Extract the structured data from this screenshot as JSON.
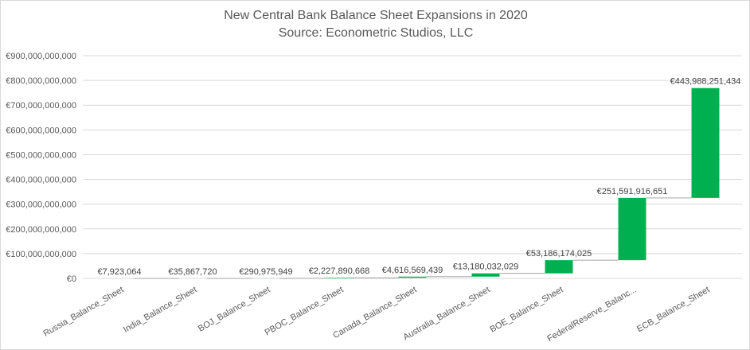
{
  "chart_data": {
    "type": "waterfall",
    "title": "New Central Bank Balance Sheet Expansions in 2020",
    "subtitle": "Source: Econometric Studios, LLC",
    "categories": [
      "Russia_Balance_Sheet",
      "India_Balance_Sheet",
      "BOJ_Balance_Sheet",
      "PBOC_Balance_Sheet",
      "Canada_Balance_Sheet",
      "Australia_Balance_Sheet",
      "BOE_Balance_Sheet",
      "FederalReserve_Balanc...",
      "ECB_Balance_Sheet"
    ],
    "values": [
      7923064,
      35867720,
      290975949,
      2227890668,
      4616569439,
      13180032029,
      53186174025,
      251591916651,
      443988251434
    ],
    "labels": [
      "€7,923,064",
      "€35,867,720",
      "€290,975,949",
      "€2,227,890,668",
      "€4,616,569,439",
      "€13,180,032,029",
      "€53,186,174,025",
      "€251,591,916,651",
      "€443,988,251,434"
    ],
    "yticks": [
      "€0",
      "€100,000,000,000",
      "€200,000,000,000",
      "€300,000,000,000",
      "€400,000,000,000",
      "€500,000,000,000",
      "€600,000,000,000",
      "€700,000,000,000",
      "€800,000,000,000",
      "€900,000,000,000"
    ],
    "ylim": [
      0,
      900000000000
    ],
    "grid": true,
    "legend": "none",
    "colors": {
      "bar": "#00b050",
      "grid": "#d9d9d9",
      "connector": "#a6a6a6",
      "text": "#595959"
    }
  }
}
